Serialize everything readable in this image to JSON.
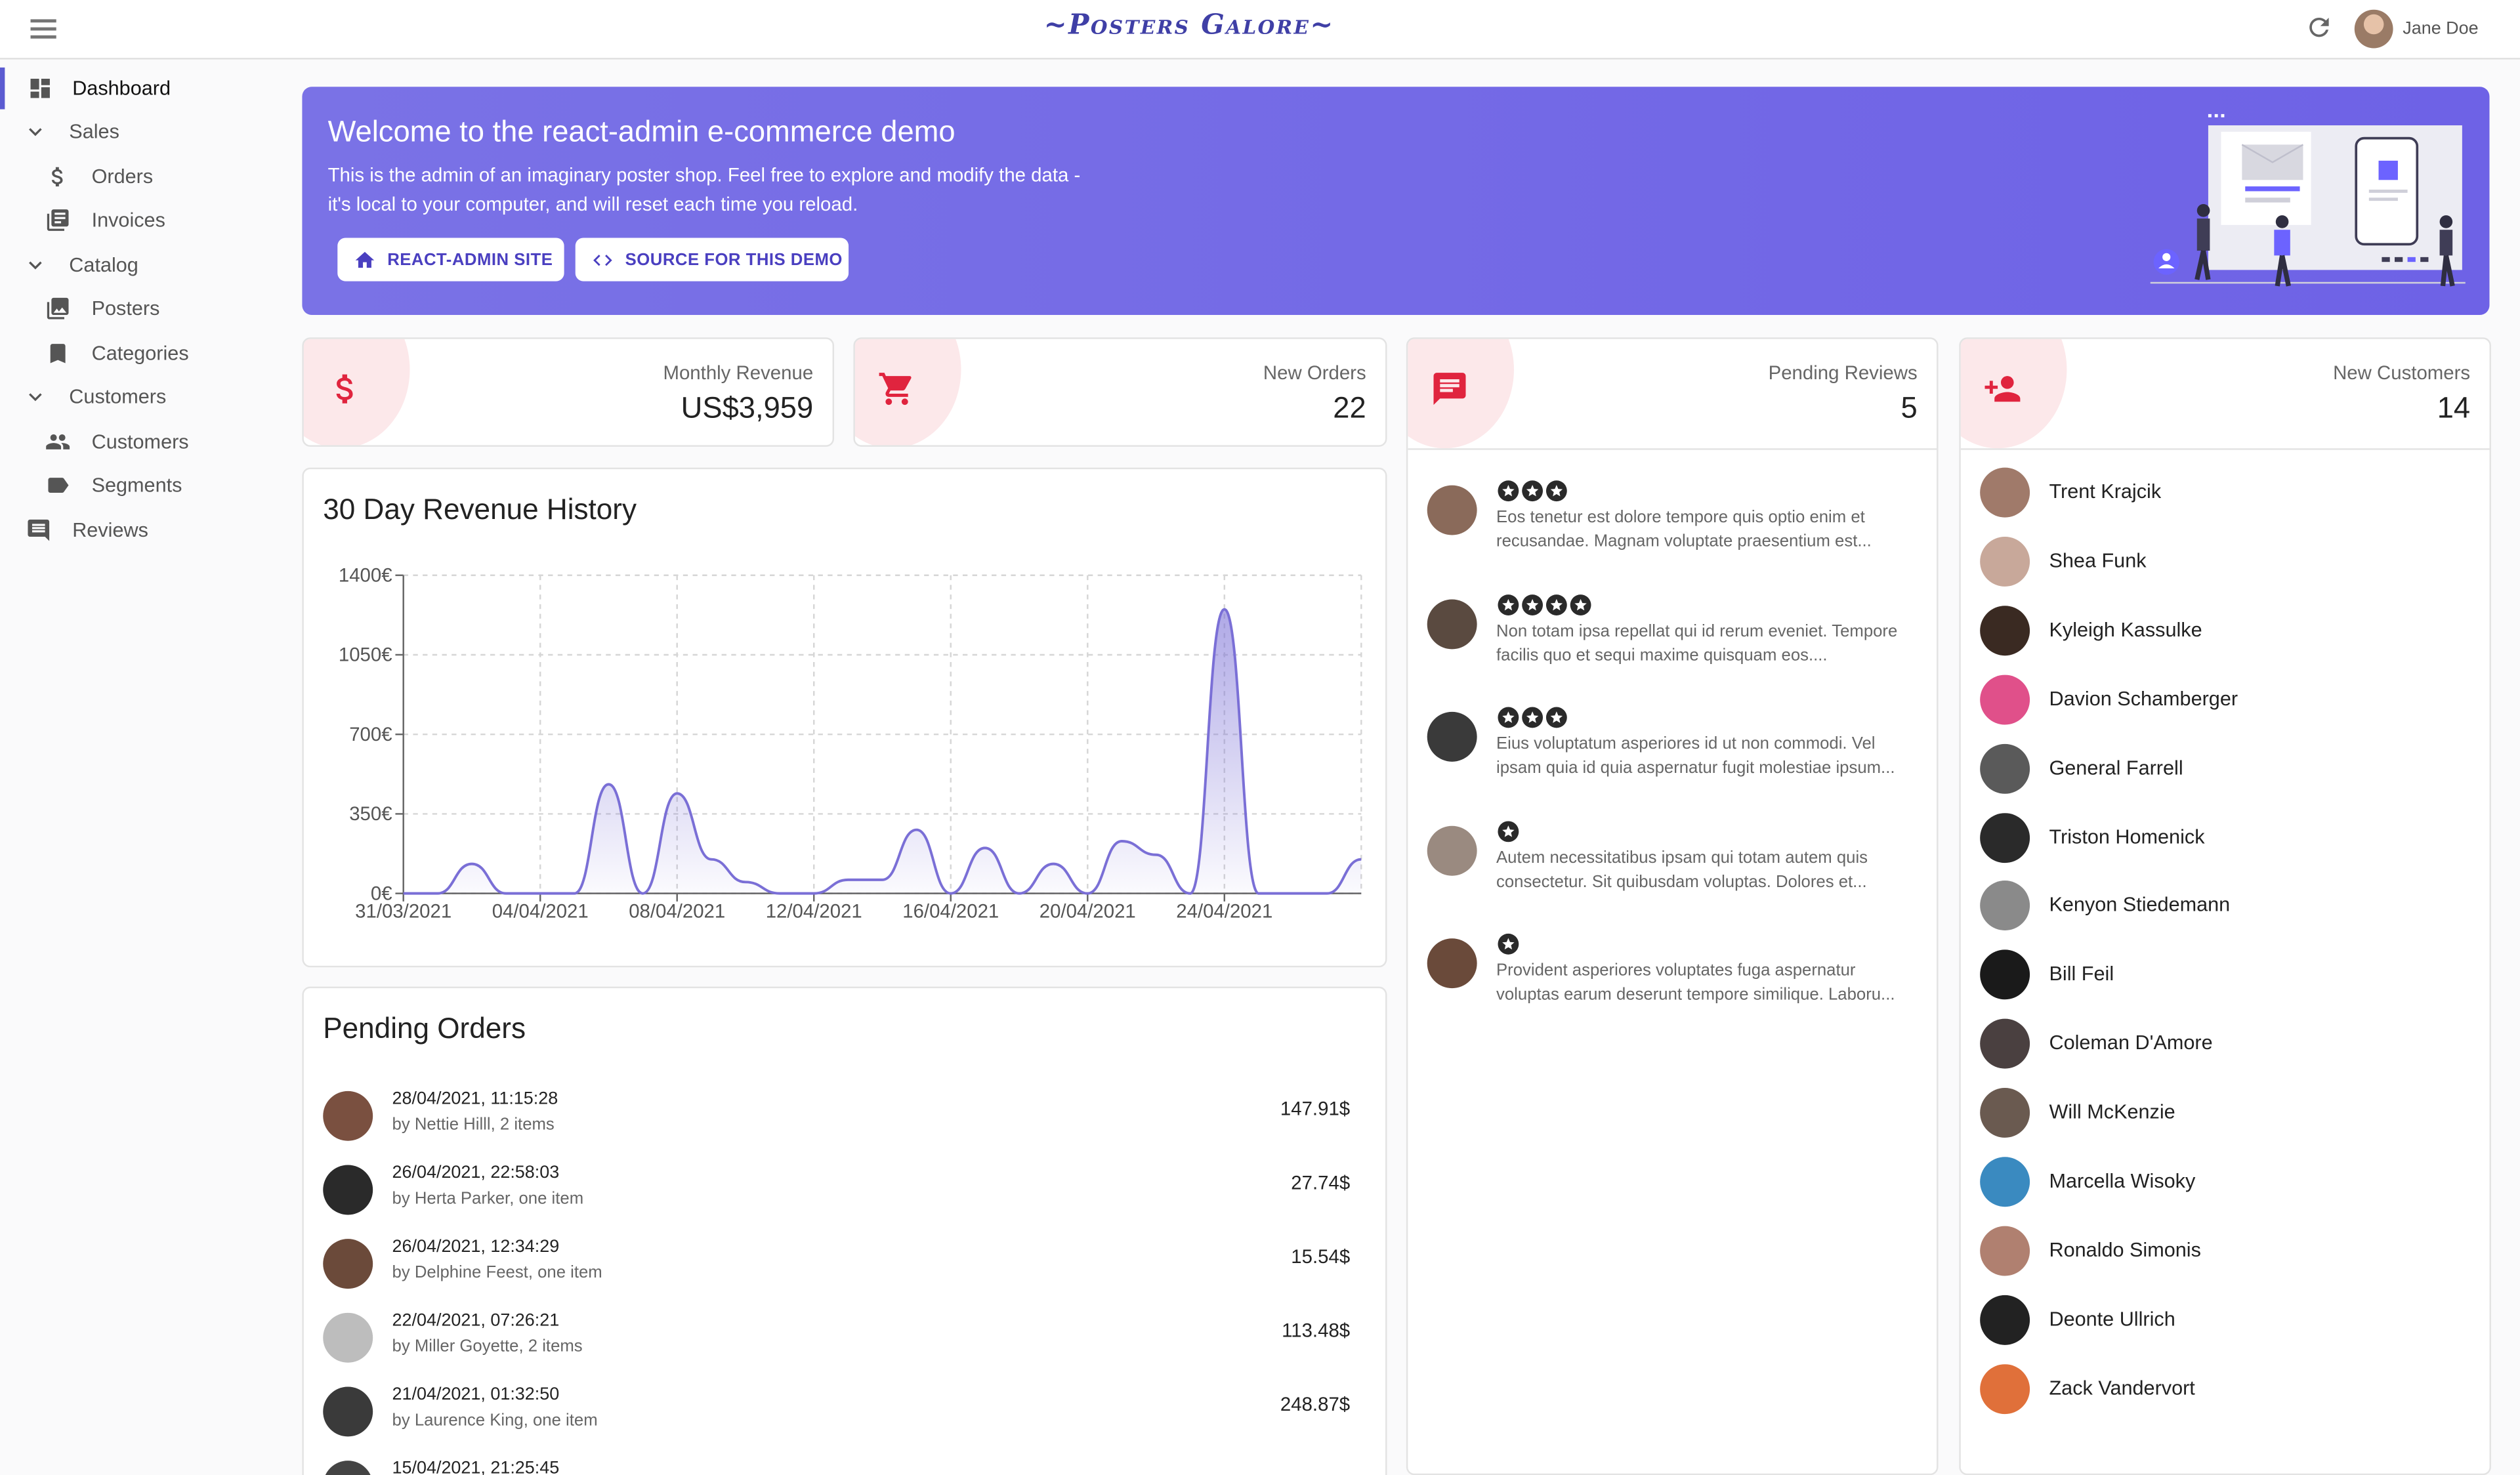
{
  "header": {
    "logo_text": "~Posters Galore~",
    "user_name": "Jane Doe"
  },
  "sidebar": {
    "items": [
      {
        "label": "Dashboard",
        "icon": "dashboard-icon",
        "active": true
      },
      {
        "label": "Sales",
        "icon": "chevron-down-icon"
      },
      {
        "label": "Orders",
        "icon": "dollar-icon"
      },
      {
        "label": "Invoices",
        "icon": "invoice-icon"
      },
      {
        "label": "Catalog",
        "icon": "chevron-down-icon"
      },
      {
        "label": "Posters",
        "icon": "image-icon"
      },
      {
        "label": "Categories",
        "icon": "bookmark-icon"
      },
      {
        "label": "Customers",
        "icon": "chevron-down-icon"
      },
      {
        "label": "Customers",
        "icon": "people-icon"
      },
      {
        "label": "Segments",
        "icon": "label-icon"
      },
      {
        "label": "Reviews",
        "icon": "comment-icon"
      }
    ]
  },
  "banner": {
    "title": "Welcome to the react-admin e-commerce demo",
    "text_line1": "This is the admin of an imaginary poster shop. Feel free to explore and modify the data -",
    "text_line2": "it's local to your computer, and will reset each time you reload.",
    "button1_label": "REACT-ADMIN SITE",
    "button2_label": "SOURCE FOR THIS DEMO"
  },
  "stats": {
    "monthly_revenue": {
      "label": "Monthly Revenue",
      "value": "US$3,959"
    },
    "new_orders": {
      "label": "New Orders",
      "value": "22"
    },
    "pending_reviews": {
      "label": "Pending Reviews",
      "value": "5"
    },
    "new_customers": {
      "label": "New Customers",
      "value": "14"
    }
  },
  "revenue_section": {
    "title": "30 Day Revenue History"
  },
  "chart_data": {
    "type": "area",
    "title": "30 Day Revenue History",
    "x": [
      "31/03/2021",
      "01/04/2021",
      "02/04/2021",
      "03/04/2021",
      "04/04/2021",
      "05/04/2021",
      "06/04/2021",
      "07/04/2021",
      "08/04/2021",
      "09/04/2021",
      "10/04/2021",
      "11/04/2021",
      "12/04/2021",
      "13/04/2021",
      "14/04/2021",
      "15/04/2021",
      "16/04/2021",
      "17/04/2021",
      "18/04/2021",
      "19/04/2021",
      "20/04/2021",
      "21/04/2021",
      "22/04/2021",
      "23/04/2021",
      "24/04/2021",
      "25/04/2021",
      "26/04/2021",
      "27/04/2021",
      "28/04/2021"
    ],
    "series": [
      {
        "values": [
          0,
          0,
          130,
          0,
          0,
          0,
          480,
          0,
          440,
          150,
          50,
          0,
          0,
          60,
          60,
          280,
          0,
          200,
          0,
          130,
          0,
          230,
          170,
          0,
          1250,
          0,
          0,
          0,
          150
        ]
      }
    ],
    "xticks": [
      "31/03/2021",
      "04/04/2021",
      "08/04/2021",
      "12/04/2021",
      "16/04/2021",
      "20/04/2021",
      "24/04/2021"
    ],
    "yticks": [
      "0€",
      "350€",
      "700€",
      "1050€",
      "1400€"
    ],
    "ylim": [
      0,
      1400
    ],
    "grid": true
  },
  "orders_section": {
    "title": "Pending Orders",
    "rows": [
      {
        "date": "28/04/2021, 11:15:28",
        "by": "by Nettie Hilll, 2 items",
        "amount": "147.91$",
        "color": "#7a5040"
      },
      {
        "date": "26/04/2021, 22:58:03",
        "by": "by Herta Parker, one item",
        "amount": "27.74$",
        "color": "#2a2a2a"
      },
      {
        "date": "26/04/2021, 12:34:29",
        "by": "by Delphine Feest, one item",
        "amount": "15.54$",
        "color": "#6b4a3a"
      },
      {
        "date": "22/04/2021, 07:26:21",
        "by": "by Miller Goyette, 2 items",
        "amount": "113.48$",
        "color": "#bdbdbd"
      },
      {
        "date": "21/04/2021, 01:32:50",
        "by": "by Laurence King, one item",
        "amount": "248.87$",
        "color": "#3a3a3a"
      },
      {
        "date": "15/04/2021, 21:25:45",
        "by": "",
        "amount": "",
        "color": "#444"
      }
    ]
  },
  "reviews": [
    {
      "stars": 3,
      "text1": "Eos tenetur est dolore tempore quis optio enim et",
      "text2": "recusandae. Magnam voluptate praesentium est...",
      "color": "#8a6a5a"
    },
    {
      "stars": 4,
      "text1": "Non totam ipsa repellat qui id rerum eveniet. Tempore",
      "text2": "facilis quo et sequi maxime quisquam eos....",
      "color": "#5a4a40"
    },
    {
      "stars": 3,
      "text1": "Eius voluptatum asperiores id ut non commodi. Vel",
      "text2": "ipsam quia id quia aspernatur fugit molestiae ipsum...",
      "color": "#3a3a3a"
    },
    {
      "stars": 1,
      "text1": "Autem necessitatibus ipsam qui totam autem quis",
      "text2": "consectetur. Sit quibusdam voluptas. Dolores et...",
      "color": "#9a8a80"
    },
    {
      "stars": 1,
      "text1": "Provident asperiores voluptates fuga aspernatur",
      "text2": "voluptas earum deserunt tempore similique. Laboru...",
      "color": "#6a4a3a"
    }
  ],
  "customers": [
    {
      "name": "Trent Krajcik",
      "color": "#a07a6a"
    },
    {
      "name": "Shea Funk",
      "color": "#c8a89a"
    },
    {
      "name": "Kyleigh Kassulke",
      "color": "#3a2a22"
    },
    {
      "name": "Davion Schamberger",
      "color": "#e0508a"
    },
    {
      "name": "General Farrell",
      "color": "#5a5a5a"
    },
    {
      "name": "Triston Homenick",
      "color": "#2a2a2a"
    },
    {
      "name": "Kenyon Stiedemann",
      "color": "#8a8a8a"
    },
    {
      "name": "Bill Feil",
      "color": "#1a1a1a"
    },
    {
      "name": "Coleman D'Amore",
      "color": "#4a4040"
    },
    {
      "name": "Will McKenzie",
      "color": "#6a5a50"
    },
    {
      "name": "Marcella Wisoky",
      "color": "#3a8ac0"
    },
    {
      "name": "Ronaldo Simonis",
      "color": "#b08070"
    },
    {
      "name": "Deonte Ullrich",
      "color": "#222222"
    },
    {
      "name": "Zack Vandervort",
      "color": "#e0703a"
    }
  ],
  "colors": {
    "accent": "#6e62e6",
    "stat_icon": "#e0243e",
    "stat_blob": "#fce8ea",
    "chart_line": "#7a6fd6"
  }
}
